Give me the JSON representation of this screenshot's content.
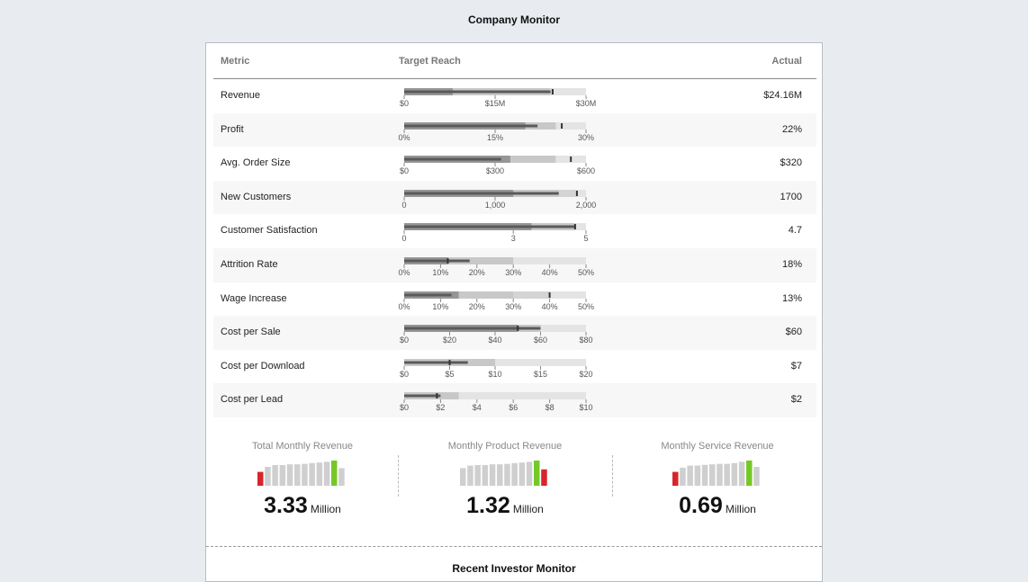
{
  "title": "Company Monitor",
  "table": {
    "headers": {
      "metric": "Metric",
      "target": "Target Reach",
      "actual": "Actual"
    }
  },
  "chart_data": {
    "type": "bullet",
    "rows": [
      {
        "metric": "Revenue",
        "actual": "$24.16M",
        "min": 0,
        "max": 30,
        "ranges": [
          8,
          24,
          24.5
        ],
        "value": 24.16,
        "target": 24.5,
        "ticks": [
          0,
          15,
          30
        ],
        "tick_labels": [
          "$0",
          "$15M",
          "$30M"
        ]
      },
      {
        "metric": "Profit",
        "actual": "22%",
        "min": 0,
        "max": 30,
        "ranges": [
          20,
          25
        ],
        "value": 22,
        "target": 26,
        "ticks": [
          0,
          15,
          30
        ],
        "tick_labels": [
          "0%",
          "15%",
          "30%"
        ]
      },
      {
        "metric": "Avg. Order Size",
        "actual": "$320",
        "min": 0,
        "max": 600,
        "ranges": [
          350,
          500
        ],
        "value": 320,
        "target": 550,
        "ticks": [
          0,
          300,
          600
        ],
        "tick_labels": [
          "$0",
          "$300",
          "$600"
        ]
      },
      {
        "metric": "New Customers",
        "actual": "1700",
        "min": 0,
        "max": 2000,
        "ranges": [
          1200,
          1700,
          1900
        ],
        "value": 1700,
        "target": 1900,
        "ticks": [
          0,
          1000,
          2000
        ],
        "tick_labels": [
          "0",
          "1,000",
          "2,000"
        ]
      },
      {
        "metric": "Customer Satisfaction",
        "actual": "4.7",
        "min": 0,
        "max": 5,
        "ranges": [
          3.5,
          4.7
        ],
        "value": 4.7,
        "target": 4.7,
        "ticks": [
          0,
          3,
          5
        ],
        "tick_labels": [
          "0",
          "3",
          "5"
        ]
      },
      {
        "metric": "Attrition Rate",
        "actual": "18%",
        "min": 0,
        "max": 50,
        "ranges": [
          12,
          30
        ],
        "value": 18,
        "target": 12,
        "ticks": [
          0,
          10,
          20,
          30,
          40,
          50
        ],
        "tick_labels": [
          "0%",
          "10%",
          "20%",
          "30%",
          "40%",
          "50%"
        ]
      },
      {
        "metric": "Wage Increase",
        "actual": "13%",
        "min": 0,
        "max": 50,
        "ranges": [
          15,
          30,
          40
        ],
        "value": 13,
        "target": 40,
        "ticks": [
          0,
          10,
          20,
          30,
          40,
          50
        ],
        "tick_labels": [
          "0%",
          "10%",
          "20%",
          "30%",
          "40%",
          "50%"
        ]
      },
      {
        "metric": "Cost per Sale",
        "actual": "$60",
        "min": 0,
        "max": 80,
        "ranges": [
          50,
          60
        ],
        "value": 60,
        "target": 50,
        "ticks": [
          0,
          20,
          40,
          60,
          80
        ],
        "tick_labels": [
          "$0",
          "$20",
          "$40",
          "$60",
          "$80"
        ]
      },
      {
        "metric": "Cost per Download",
        "actual": "$7",
        "min": 0,
        "max": 20,
        "ranges": [
          10
        ],
        "value": 7,
        "target": 5,
        "ticks": [
          0,
          5,
          10,
          15,
          20
        ],
        "tick_labels": [
          "$0",
          "$5",
          "$10",
          "$15",
          "$20"
        ]
      },
      {
        "metric": "Cost per Lead",
        "actual": "$2",
        "min": 0,
        "max": 10,
        "ranges": [
          3
        ],
        "value": 2,
        "target": 1.8,
        "ticks": [
          0,
          2,
          4,
          6,
          8,
          10
        ],
        "tick_labels": [
          "$0",
          "$2",
          "$4",
          "$6",
          "$8",
          "$10"
        ]
      }
    ],
    "kpis": [
      {
        "title": "Total Monthly Revenue",
        "value": "3.33",
        "unit": "Million",
        "bars": [
          0.55,
          0.75,
          0.82,
          0.82,
          0.85,
          0.85,
          0.87,
          0.9,
          0.92,
          0.95,
          1.0,
          0.7
        ],
        "bar_colors": [
          "#d9242b",
          "#cfcfcf",
          "#cfcfcf",
          "#cfcfcf",
          "#cfcfcf",
          "#cfcfcf",
          "#cfcfcf",
          "#cfcfcf",
          "#cfcfcf",
          "#cfcfcf",
          "#74c926",
          "#cfcfcf"
        ]
      },
      {
        "title": "Monthly Product Revenue",
        "value": "1.32",
        "unit": "Million",
        "bars": [
          0.7,
          0.8,
          0.82,
          0.82,
          0.85,
          0.85,
          0.87,
          0.9,
          0.92,
          0.95,
          1.0,
          0.65
        ],
        "bar_colors": [
          "#cfcfcf",
          "#cfcfcf",
          "#cfcfcf",
          "#cfcfcf",
          "#cfcfcf",
          "#cfcfcf",
          "#cfcfcf",
          "#cfcfcf",
          "#cfcfcf",
          "#cfcfcf",
          "#74c926",
          "#d9242b"
        ]
      },
      {
        "title": "Monthly Service Revenue",
        "value": "0.69",
        "unit": "Million",
        "bars": [
          0.55,
          0.72,
          0.8,
          0.8,
          0.83,
          0.85,
          0.87,
          0.87,
          0.9,
          0.95,
          1.0,
          0.75
        ],
        "bar_colors": [
          "#d9242b",
          "#cfcfcf",
          "#cfcfcf",
          "#cfcfcf",
          "#cfcfcf",
          "#cfcfcf",
          "#cfcfcf",
          "#cfcfcf",
          "#cfcfcf",
          "#cfcfcf",
          "#74c926",
          "#cfcfcf"
        ]
      }
    ]
  },
  "colors": {
    "range_light": "#e4e4e4",
    "range_mid": "#c8c8c8",
    "range_dark": "#969696",
    "bar": "#5a5a5a",
    "target": "#333333"
  },
  "footer": {
    "next_title": "Recent Investor Monitor"
  }
}
